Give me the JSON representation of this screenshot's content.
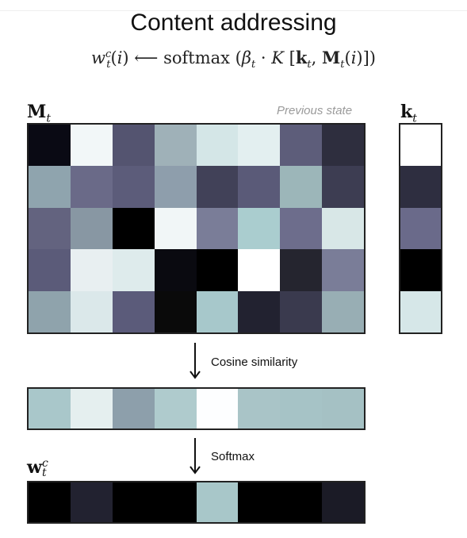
{
  "title": "Content addressing",
  "memory_label": "M",
  "memory_sub": "t",
  "memory_caption": "Previous state",
  "key_label": "k",
  "key_sub": "t",
  "weights_label": "w",
  "weights_sup": "c",
  "weights_sub": "t",
  "step1_label": "Cosine similarity",
  "step2_label": "Softmax",
  "memory_cells": [
    [
      "#0a0a14",
      "#f2f7f8",
      "#545470",
      "#9fb1b8",
      "#d4e6e7",
      "#e3eff0",
      "#5d5d7a",
      "#2e2e3e"
    ],
    [
      "#8fa4ae",
      "#6a6a88",
      "#5c5c7a",
      "#8e9eac",
      "#414158",
      "#5a5a78",
      "#9cb6b9",
      "#3d3d52"
    ],
    [
      "#63637f",
      "#8897a3",
      "#000000",
      "#f1f6f7",
      "#7a7d98",
      "#aacdcf",
      "#6d6d8c",
      "#d8e7e7"
    ],
    [
      "#5b5b79",
      "#e8eff1",
      "#deebec",
      "#0a0a10",
      "#000000",
      "#ffffff",
      "#25252f",
      "#7a7d98"
    ],
    [
      "#8fa3ac",
      "#dbe8ea",
      "#5b5b7a",
      "#0a0a0a",
      "#a7c8cb",
      "#222230",
      "#3a3a4e",
      "#98aeb4"
    ]
  ],
  "key_cells": [
    "#ffffff",
    "#2e2e40",
    "#6a6a8a",
    "#000000",
    "#d6e7e8"
  ],
  "similarity_cells": [
    "#a9c7ca",
    "#e5efef",
    "#8d9fab",
    "#afcbcd",
    "#fdfeff",
    "#a9c4c7",
    "#a6c3c6",
    "#a5c1c4"
  ],
  "weights_cells": [
    "#000000",
    "#222230",
    "#000000",
    "#000000",
    "#a8c7c9",
    "#000000",
    "#000000",
    "#1b1b26"
  ]
}
